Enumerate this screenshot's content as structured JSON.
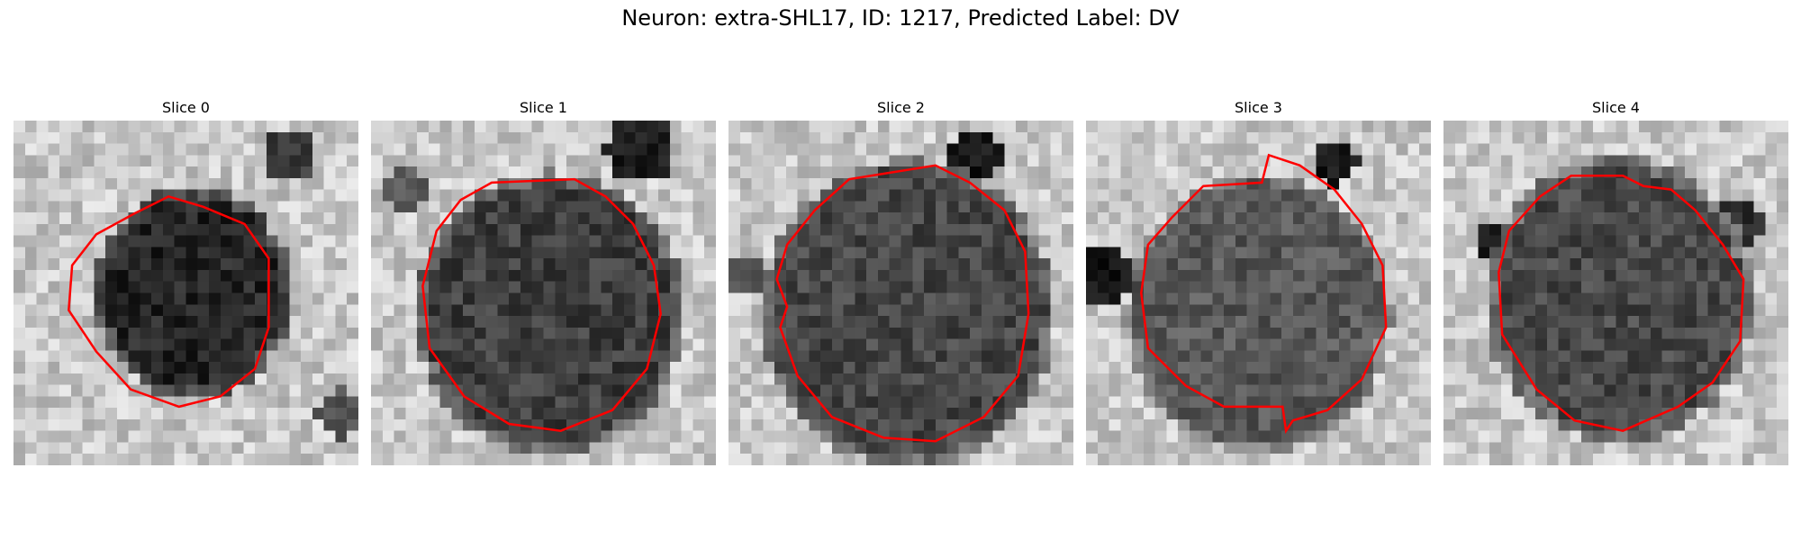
{
  "figure": {
    "title": "Neuron: extra-SHL17, ID: 1217, Predicted Label: DV"
  },
  "contour_color": "#ff0000",
  "slices": [
    {
      "label": "Slice 0"
    },
    {
      "label": "Slice 1"
    },
    {
      "label": "Slice 2"
    },
    {
      "label": "Slice 3"
    },
    {
      "label": "Slice 4"
    }
  ]
}
